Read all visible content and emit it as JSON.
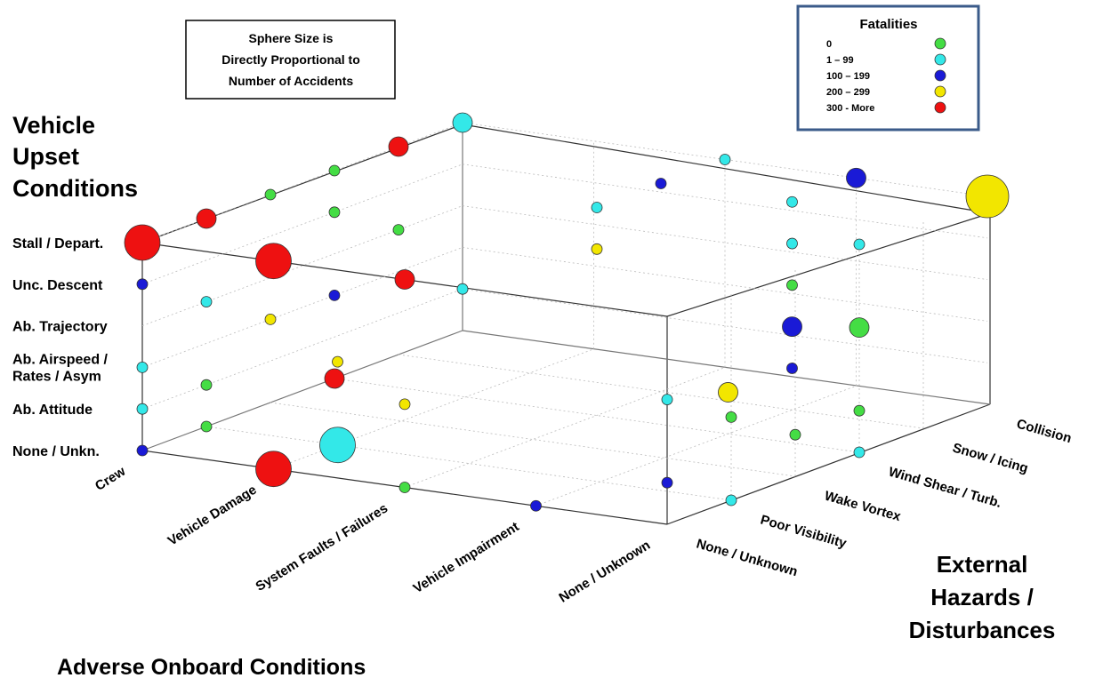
{
  "chart_data": {
    "type": "scatter",
    "title": "",
    "note_lines": [
      "Sphere Size is",
      "Directly Proportional to",
      "Number of Accidents"
    ],
    "axes": {
      "y_title_lines": [
        "Vehicle",
        "Upset",
        "Conditions"
      ],
      "y_categories": [
        "None / Unkn.",
        "Ab. Attitude",
        "Ab. Airspeed / Rates / Asym",
        "Ab. Trajectory",
        "Unc. Descent",
        "Stall / Depart."
      ],
      "y_tick_labels": [
        [
          "None / Unkn."
        ],
        [
          "Ab. Attitude"
        ],
        [
          "Ab. Airspeed /",
          "Rates / Asym"
        ],
        [
          "Ab. Trajectory"
        ],
        [
          "Unc. Descent"
        ],
        [
          "Stall / Depart."
        ]
      ],
      "x_title": "Adverse Onboard Conditions",
      "x_categories": [
        "Crew",
        "Vehicle Damage",
        "System Faults / Failures",
        "Vehicle Impairment",
        "None / Unknown"
      ],
      "z_title_lines": [
        "External",
        "Hazards /",
        "Disturbances"
      ],
      "z_categories": [
        "None / Unknown",
        "Poor Visibility",
        "Wake Vortex",
        "Wind Shear / Turb.",
        "Snow / Icing",
        "Collision"
      ]
    },
    "legend": {
      "title": "Fatalities",
      "placement": "top-right",
      "items": [
        {
          "label": "0",
          "color": "#44dd44"
        },
        {
          "label": "1 – 99",
          "color": "#33e8e8"
        },
        {
          "label": "100 – 199",
          "color": "#1a1ad6"
        },
        {
          "label": "200 – 299",
          "color": "#f2e600"
        },
        {
          "label": "300 - More",
          "color": "#ee1111"
        }
      ]
    },
    "points": [
      {
        "x": "Crew",
        "y": "Stall / Depart.",
        "z": "None / Unknown",
        "fatalities": "300 - More",
        "size": "large"
      },
      {
        "x": "Crew",
        "y": "Unc. Descent",
        "z": "None / Unknown",
        "fatalities": "100 – 199",
        "size": "small"
      },
      {
        "x": "Crew",
        "y": "Ab. Airspeed / Rates / Asym",
        "z": "None / Unknown",
        "fatalities": "1 – 99",
        "size": "small"
      },
      {
        "x": "Crew",
        "y": "Ab. Attitude",
        "z": "None / Unknown",
        "fatalities": "1 – 99",
        "size": "small"
      },
      {
        "x": "Crew",
        "y": "None / Unkn.",
        "z": "None / Unknown",
        "fatalities": "100 – 199",
        "size": "small"
      },
      {
        "x": "Crew",
        "y": "Stall / Depart.",
        "z": "Poor Visibility",
        "fatalities": "300 - More",
        "size": "medium"
      },
      {
        "x": "Crew",
        "y": "Ab. Trajectory",
        "z": "Poor Visibility",
        "fatalities": "1 – 99",
        "size": "small"
      },
      {
        "x": "Crew",
        "y": "Ab. Attitude",
        "z": "Poor Visibility",
        "fatalities": "0",
        "size": "small"
      },
      {
        "x": "Crew",
        "y": "None / Unkn.",
        "z": "Poor Visibility",
        "fatalities": "0",
        "size": "small"
      },
      {
        "x": "Crew",
        "y": "Stall / Depart.",
        "z": "Wake Vortex",
        "fatalities": "0",
        "size": "small"
      },
      {
        "x": "Crew",
        "y": "Ab. Airspeed / Rates / Asym",
        "z": "Wake Vortex",
        "fatalities": "200 – 299",
        "size": "small"
      },
      {
        "x": "Crew",
        "y": "Stall / Depart.",
        "z": "Wind Shear / Turb.",
        "fatalities": "0",
        "size": "small"
      },
      {
        "x": "Crew",
        "y": "Unc. Descent",
        "z": "Wind Shear / Turb.",
        "fatalities": "0",
        "size": "small"
      },
      {
        "x": "Crew",
        "y": "Ab. Airspeed / Rates / Asym",
        "z": "Wind Shear / Turb.",
        "fatalities": "100 – 199",
        "size": "small"
      },
      {
        "x": "Crew",
        "y": "None / Unkn.",
        "z": "Wind Shear / Turb.",
        "fatalities": "300 - More",
        "size": "medium"
      },
      {
        "x": "Crew",
        "y": "Stall / Depart.",
        "z": "Snow / Icing",
        "fatalities": "300 - More",
        "size": "medium"
      },
      {
        "x": "Crew",
        "y": "Ab. Trajectory",
        "z": "Snow / Icing",
        "fatalities": "0",
        "size": "small"
      },
      {
        "x": "Crew",
        "y": "Stall / Depart.",
        "z": "Collision",
        "fatalities": "1 – 99",
        "size": "medium"
      },
      {
        "x": "Crew",
        "y": "Ab. Attitude",
        "z": "Collision",
        "fatalities": "1 – 99",
        "size": "small"
      },
      {
        "x": "Vehicle Damage",
        "y": "None / Unkn.",
        "z": "None / Unknown",
        "fatalities": "0",
        "size": "small"
      },
      {
        "x": "Vehicle Damage",
        "y": "Stall / Depart.",
        "z": "None / Unknown",
        "fatalities": "300 - More",
        "size": "large"
      },
      {
        "x": "Vehicle Damage",
        "y": "None / Unkn.",
        "z": "Poor Visibility",
        "fatalities": "1 – 99",
        "size": "large"
      },
      {
        "x": "Vehicle Damage",
        "y": "None / Unkn.",
        "z": "None / Unknown",
        "fatalities": "300 - More",
        "size": "large"
      },
      {
        "x": "Vehicle Damage",
        "y": "Ab. Airspeed / Rates / Asym",
        "z": "Poor Visibility",
        "fatalities": "200 – 299",
        "size": "small"
      },
      {
        "x": "System Faults / Failures",
        "y": "Stall / Depart.",
        "z": "Wind Shear / Turb.",
        "fatalities": "1 – 99",
        "size": "small"
      },
      {
        "x": "System Faults / Failures",
        "y": "Unc. Descent",
        "z": "Wind Shear / Turb.",
        "fatalities": "200 – 299",
        "size": "small"
      },
      {
        "x": "System Faults / Failures",
        "y": "Stall / Depart.",
        "z": "Snow / Icing",
        "fatalities": "100 – 199",
        "size": "small"
      },
      {
        "x": "System Faults / Failures",
        "y": "Stall / Depart.",
        "z": "Collision",
        "fatalities": "1 – 99",
        "size": "small"
      },
      {
        "x": "System Faults / Failures",
        "y": "Stall / Depart.",
        "z": "None / Unknown",
        "fatalities": "300 - More",
        "size": "medium"
      },
      {
        "x": "System Faults / Failures",
        "y": "Ab. Airspeed / Rates / Asym",
        "z": "None / Unknown",
        "fatalities": "200 – 299",
        "size": "small"
      },
      {
        "x": "System Faults / Failures",
        "y": "None / Unkn.",
        "z": "None / Unknown",
        "fatalities": "0",
        "size": "small"
      },
      {
        "x": "Vehicle Impairment",
        "y": "Stall / Depart.",
        "z": "Snow / Icing",
        "fatalities": "1 – 99",
        "size": "small"
      },
      {
        "x": "Vehicle Impairment",
        "y": "Unc. Descent",
        "z": "Snow / Icing",
        "fatalities": "1 – 99",
        "size": "small"
      },
      {
        "x": "Vehicle Impairment",
        "y": "Ab. Trajectory",
        "z": "Snow / Icing",
        "fatalities": "0",
        "size": "small"
      },
      {
        "x": "Vehicle Impairment",
        "y": "Ab. Airspeed / Rates / Asym",
        "z": "Snow / Icing",
        "fatalities": "100 – 199",
        "size": "medium"
      },
      {
        "x": "Vehicle Impairment",
        "y": "Ab. Attitude",
        "z": "Snow / Icing",
        "fatalities": "100 – 199",
        "size": "small"
      },
      {
        "x": "Vehicle Impairment",
        "y": "Ab. Attitude",
        "z": "Wind Shear / Turb.",
        "fatalities": "200 – 299",
        "size": "medium"
      },
      {
        "x": "Vehicle Impairment",
        "y": "None / Unkn.",
        "z": "None / Unknown",
        "fatalities": "100 – 199",
        "size": "small"
      },
      {
        "x": "Vehicle Impairment",
        "y": "Stall / Depart.",
        "z": "Collision",
        "fatalities": "100 – 199",
        "size": "medium"
      },
      {
        "x": "None / Unknown",
        "y": "Stall / Depart.",
        "z": "Collision",
        "fatalities": "200 – 299",
        "size": "xlarge"
      },
      {
        "x": "None / Unknown",
        "y": "Stall / Depart.",
        "z": "Wind Shear / Turb.",
        "fatalities": "1 – 99",
        "size": "small"
      },
      {
        "x": "None / Unknown",
        "y": "Ab. Trajectory",
        "z": "None / Unknown",
        "fatalities": "1 – 99",
        "size": "small"
      },
      {
        "x": "None / Unknown",
        "y": "Ab. Attitude",
        "z": "None / Unknown",
        "fatalities": "100 – 199",
        "size": "small"
      },
      {
        "x": "None / Unknown",
        "y": "Ab. Airspeed / Rates / Asym",
        "z": "Poor Visibility",
        "fatalities": "0",
        "size": "small"
      },
      {
        "x": "None / Unknown",
        "y": "Ab. Attitude",
        "z": "Wake Vortex",
        "fatalities": "0",
        "size": "small"
      },
      {
        "x": "None / Unknown",
        "y": "Ab. Attitude",
        "z": "Wind Shear / Turb.",
        "fatalities": "0",
        "size": "small"
      },
      {
        "x": "None / Unknown",
        "y": "Ab. Trajectory",
        "z": "Wind Shear / Turb.",
        "fatalities": "0",
        "size": "medium"
      },
      {
        "x": "None / Unknown",
        "y": "None / Unkn.",
        "z": "Poor Visibility",
        "fatalities": "1 – 99",
        "size": "small"
      },
      {
        "x": "None / Unknown",
        "y": "None / Unkn.",
        "z": "Wind Shear / Turb.",
        "fatalities": "1 – 99",
        "size": "small"
      }
    ]
  }
}
